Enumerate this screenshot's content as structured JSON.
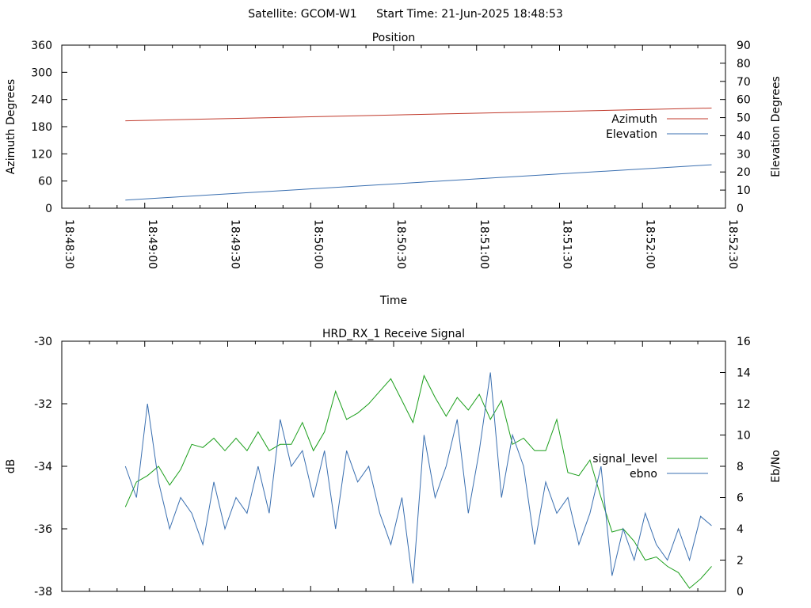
{
  "header": {
    "satellite": "Satellite: GCOM-W1",
    "start_time": "Start Time: 21-Jun-2025 18:48:53"
  },
  "chart_data": [
    {
      "type": "line",
      "title": "Position",
      "xlabel": "Time",
      "ylabel": "Azimuth Degrees",
      "y2label": "Elevation Degrees",
      "x_range": [
        "18:48:30",
        "18:52:30"
      ],
      "x_ticks": [
        "18:48:30",
        "18:49:00",
        "18:49:30",
        "18:50:00",
        "18:50:30",
        "18:51:00",
        "18:51:30",
        "18:52:00",
        "18:52:30"
      ],
      "ylim": [
        0,
        360
      ],
      "y_ticks": [
        0,
        60,
        120,
        180,
        240,
        300,
        360
      ],
      "y2lim": [
        0,
        90
      ],
      "y2_ticks": [
        0,
        10,
        20,
        30,
        40,
        50,
        60,
        70,
        80,
        90
      ],
      "legend_position": "right",
      "series": [
        {
          "name": "Azimuth",
          "axis": "y",
          "color": "#c0392b",
          "x": [
            "18:48:53",
            "18:52:25"
          ],
          "values": [
            193,
            221
          ]
        },
        {
          "name": "Elevation",
          "axis": "y2",
          "color": "#3a6fb0",
          "x": [
            "18:48:53",
            "18:52:25"
          ],
          "values": [
            4.5,
            24
          ]
        }
      ]
    },
    {
      "type": "line",
      "title": "HRD_RX_1 Receive Signal",
      "ylabel": "dB",
      "y2label": "Eb/No",
      "x_range": [
        "18:48:30",
        "18:52:30"
      ],
      "ylim": [
        -38,
        -30
      ],
      "y_ticks": [
        -38,
        -36,
        -34,
        -32,
        -30
      ],
      "y2lim": [
        0,
        16
      ],
      "y2_ticks": [
        0,
        2,
        4,
        6,
        8,
        10,
        12,
        14,
        16
      ],
      "legend_position": "right",
      "series": [
        {
          "name": "signal_level",
          "axis": "y",
          "color": "#1a9e1a",
          "x": [
            "18:48:53",
            "18:48:57",
            "18:49:01",
            "18:49:05",
            "18:49:09",
            "18:49:13",
            "18:49:17",
            "18:49:21",
            "18:49:25",
            "18:49:29",
            "18:49:33",
            "18:49:37",
            "18:49:41",
            "18:49:45",
            "18:49:49",
            "18:49:53",
            "18:49:57",
            "18:50:01",
            "18:50:05",
            "18:50:09",
            "18:50:13",
            "18:50:17",
            "18:50:21",
            "18:50:25",
            "18:50:29",
            "18:50:33",
            "18:50:37",
            "18:50:41",
            "18:50:45",
            "18:50:49",
            "18:50:53",
            "18:50:57",
            "18:51:01",
            "18:51:05",
            "18:51:09",
            "18:51:13",
            "18:51:17",
            "18:51:21",
            "18:51:25",
            "18:51:29",
            "18:51:33",
            "18:51:37",
            "18:51:41",
            "18:51:45",
            "18:51:49",
            "18:51:53",
            "18:51:57",
            "18:52:01",
            "18:52:05",
            "18:52:09",
            "18:52:13",
            "18:52:17",
            "18:52:21",
            "18:52:25"
          ],
          "values": [
            -35.3,
            -34.5,
            -34.3,
            -34.0,
            -34.6,
            -34.1,
            -33.3,
            -33.4,
            -33.1,
            -33.5,
            -33.1,
            -33.5,
            -32.9,
            -33.5,
            -33.3,
            -33.3,
            -32.6,
            -33.5,
            -32.9,
            -31.6,
            -32.5,
            -32.3,
            -32.0,
            -31.6,
            -31.2,
            -31.9,
            -32.6,
            -31.1,
            -31.8,
            -32.4,
            -31.8,
            -32.2,
            -31.7,
            -32.5,
            -31.9,
            -33.3,
            -33.1,
            -33.5,
            -33.5,
            -32.5,
            -34.2,
            -34.3,
            -33.8,
            -35.0,
            -36.1,
            -36.0,
            -36.4,
            -37.0,
            -36.9,
            -37.2,
            -37.4,
            -37.9,
            -37.6,
            -37.2
          ]
        },
        {
          "name": "ebno",
          "axis": "y2",
          "color": "#3a6fb0",
          "x": [
            "18:48:53",
            "18:48:57",
            "18:49:01",
            "18:49:05",
            "18:49:09",
            "18:49:13",
            "18:49:17",
            "18:49:21",
            "18:49:25",
            "18:49:29",
            "18:49:33",
            "18:49:37",
            "18:49:41",
            "18:49:45",
            "18:49:49",
            "18:49:53",
            "18:49:57",
            "18:50:01",
            "18:50:05",
            "18:50:09",
            "18:50:13",
            "18:50:17",
            "18:50:21",
            "18:50:25",
            "18:50:29",
            "18:50:33",
            "18:50:37",
            "18:50:41",
            "18:50:45",
            "18:50:49",
            "18:50:53",
            "18:50:57",
            "18:51:01",
            "18:51:05",
            "18:51:09",
            "18:51:13",
            "18:51:17",
            "18:51:21",
            "18:51:25",
            "18:51:29",
            "18:51:33",
            "18:51:37",
            "18:51:41",
            "18:51:45",
            "18:51:49",
            "18:51:53",
            "18:51:57",
            "18:52:01",
            "18:52:05",
            "18:52:09",
            "18:52:13",
            "18:52:17",
            "18:52:21",
            "18:52:25"
          ],
          "values": [
            8,
            6,
            12,
            7,
            4,
            6,
            5,
            3,
            7,
            4,
            6,
            5,
            8,
            5,
            11,
            8,
            9,
            6,
            9,
            4,
            9,
            7,
            8,
            5,
            3,
            6,
            0.5,
            10,
            6,
            8,
            11,
            5,
            9,
            14,
            6,
            10,
            8,
            3,
            7,
            5,
            6,
            3,
            5,
            8,
            1,
            4,
            2,
            5,
            3,
            2,
            4,
            2,
            4.8,
            4.2
          ]
        }
      ]
    }
  ]
}
